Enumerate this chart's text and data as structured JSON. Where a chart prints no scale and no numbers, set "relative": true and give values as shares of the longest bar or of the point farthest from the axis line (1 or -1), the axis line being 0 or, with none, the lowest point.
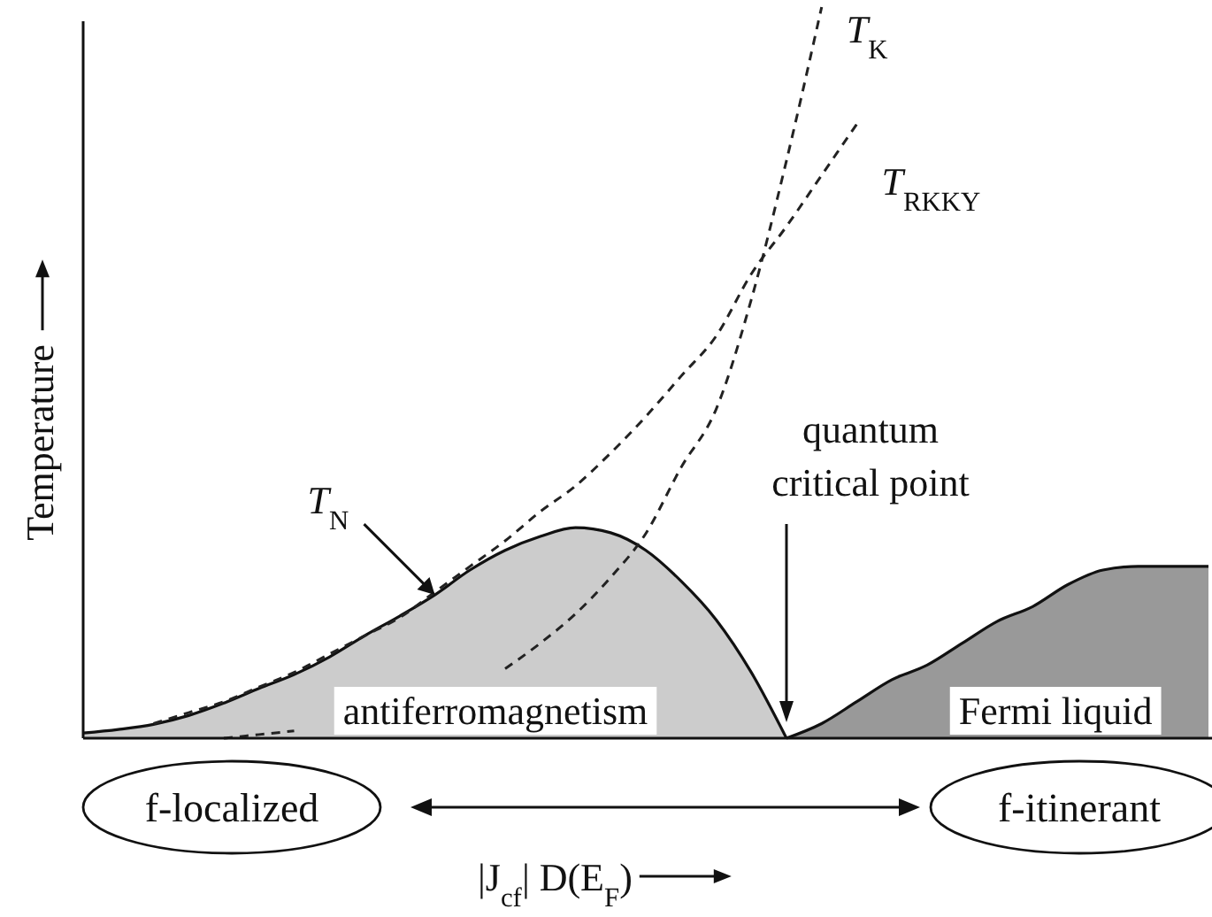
{
  "chart_data": {
    "type": "line",
    "relative": true,
    "xlabel": "|J$_{cf}$| D(E$_{F}$)",
    "ylabel": "Temperature",
    "categories": [
      null,
      null,
      null,
      null,
      null,
      null,
      null,
      null,
      null,
      null,
      null,
      null,
      null,
      null,
      null,
      null,
      null,
      null,
      null,
      null,
      null,
      null,
      null,
      null,
      null,
      null,
      null,
      null,
      null,
      null,
      null,
      null,
      null
    ],
    "series": [
      {
        "name": "T$_{N}$",
        "type": "area",
        "color": "#cccccc",
        "line_style": "solid",
        "values": [
          0.007,
          0.012,
          0.019,
          0.031,
          0.048,
          0.068,
          0.087,
          0.111,
          0.14,
          0.167,
          0.196,
          0.23,
          0.257,
          0.276,
          0.288,
          0.281,
          0.257,
          0.215,
          0.162,
          0.09,
          0,
          null,
          null,
          null,
          null,
          null,
          null,
          null,
          null,
          null,
          null,
          null,
          null
        ]
      },
      {
        "name": "Fermi liquid",
        "type": "area",
        "color": "#999999",
        "line_style": "solid",
        "values": [
          null,
          null,
          null,
          null,
          null,
          null,
          null,
          null,
          null,
          null,
          null,
          null,
          null,
          null,
          null,
          null,
          null,
          null,
          null,
          null,
          0,
          0.02,
          0.05,
          0.08,
          0.1,
          0.13,
          0.16,
          0.18,
          0.21,
          0.23,
          0.235,
          0.235,
          0.235
        ]
      },
      {
        "name": "T$_{K}$",
        "color": "#222222",
        "line_style": "dashed",
        "values": [
          null,
          null,
          null,
          null,
          0,
          0.005,
          0.01,
          null,
          null,
          null,
          null,
          null,
          0.095,
          0.13,
          0.17,
          0.22,
          0.28,
          0.37,
          0.45,
          0.6,
          0.79,
          1.0,
          null,
          null,
          null,
          null,
          null,
          null,
          null,
          null,
          null,
          null,
          null
        ]
      },
      {
        "name": "T$_{RKKY}$",
        "color": "#222222",
        "line_style": "dashed",
        "values": [
          null,
          null,
          0.02,
          0.035,
          0.05,
          0.07,
          0.09,
          0.115,
          0.14,
          0.165,
          0.2,
          0.235,
          0.27,
          0.31,
          0.345,
          0.39,
          0.44,
          0.495,
          0.55,
          0.635,
          0.7,
          0.77,
          0.84,
          null,
          null,
          null,
          null,
          null,
          null,
          null,
          null,
          null,
          null
        ]
      }
    ],
    "annotations": [
      "antiferromagnetism",
      "quantum critical point",
      "f-localized",
      "f-itinerant"
    ]
  }
}
